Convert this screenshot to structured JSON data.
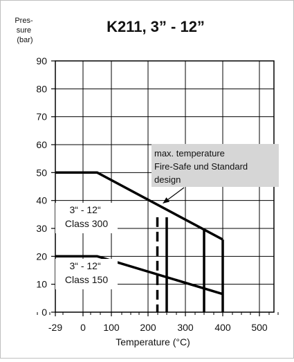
{
  "chart_data": {
    "type": "line",
    "title": "K211, 3” - 12”",
    "ylabel_lines": [
      "Pres-",
      "sure",
      "(bar)"
    ],
    "xlabel": "Temperature (°C)",
    "x_ticks": [
      -29,
      0,
      100,
      200,
      300,
      400,
      500
    ],
    "y_ticks": [
      0,
      10,
      20,
      30,
      40,
      50,
      60,
      70,
      80,
      90
    ],
    "xlim": [
      -29,
      500
    ],
    "ylim": [
      0,
      90
    ],
    "grid": true,
    "series": [
      {
        "label_lines": [
          "3“ - 12“",
          "Class 300"
        ],
        "x": [
          -29,
          50,
          400
        ],
        "y": [
          50,
          50,
          26
        ]
      },
      {
        "label_lines": [
          "3“ - 12“",
          "Class 150"
        ],
        "x": [
          -29,
          50,
          400
        ],
        "y": [
          20,
          20,
          6.5
        ]
      }
    ],
    "vertical_markers": [
      {
        "x": 225,
        "y_top": 34,
        "style": "dashed"
      },
      {
        "x": 250,
        "y_top": 34,
        "style": "solid"
      },
      {
        "x": 350,
        "y_top": 30,
        "style": "solid"
      },
      {
        "x": 400,
        "y_top": 26,
        "style": "solid"
      }
    ],
    "annotation": {
      "lines": [
        "max. temperature",
        "Fire-Safe und Standard",
        "design"
      ],
      "points_to": {
        "x": 240,
        "y": 40
      }
    }
  }
}
